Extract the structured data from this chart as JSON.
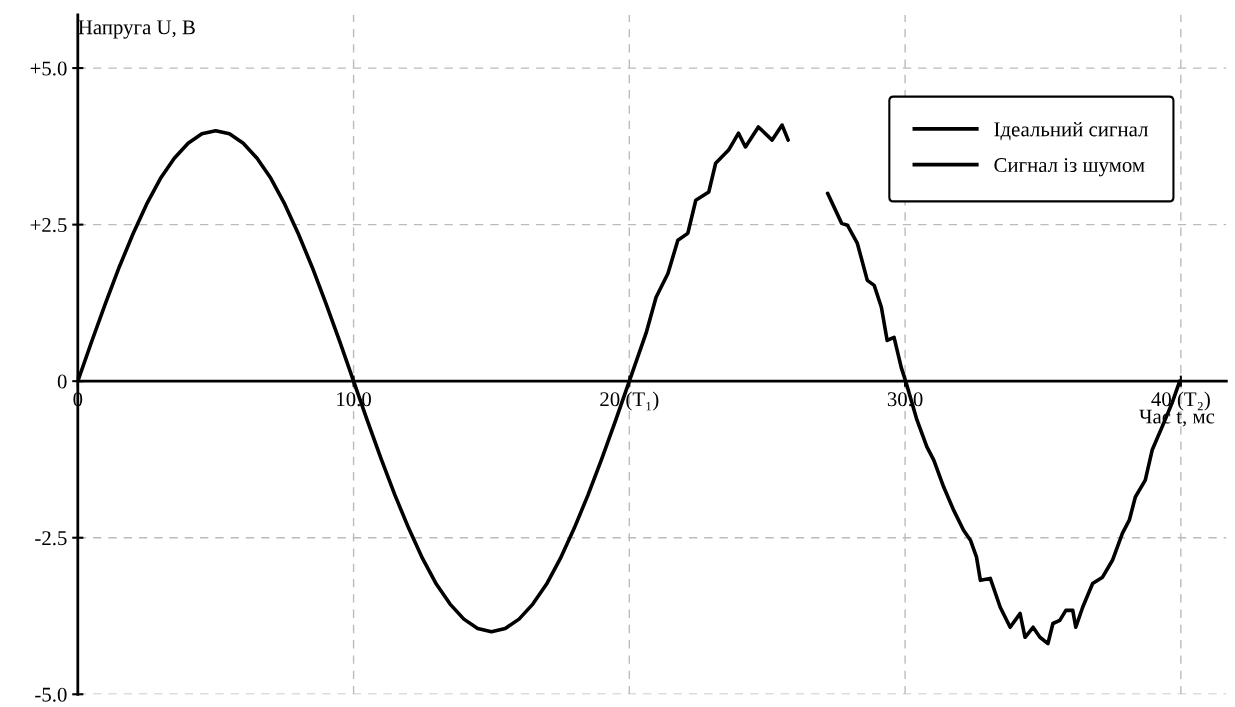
{
  "chart_data": {
    "type": "line",
    "xlabel": "Час t, мс",
    "ylabel": "Напруга U, В",
    "xlim": [
      0,
      41.65
    ],
    "ylim": [
      -5,
      5.85
    ],
    "xticks": [
      0,
      {
        "value": 10,
        "label": "10.0"
      },
      {
        "value": 20,
        "label": "20 (T₁)"
      },
      {
        "value": 30,
        "label": "30.0"
      },
      {
        "value": 40,
        "label": "40 (T₂)"
      }
    ],
    "yticks": [
      {
        "value": -5,
        "label": "-5.0"
      },
      {
        "value": -2.5,
        "label": "-2.5"
      },
      0,
      {
        "value": 2.5,
        "label": "+2.5"
      },
      {
        "value": 5,
        "label": "+5.0"
      }
    ],
    "grid": true,
    "legend": "top right",
    "line_style": "solid",
    "marker": "none",
    "series": [
      {
        "name": "Ідеальний сигнал",
        "color": "#000000",
        "x": [
          0,
          0.5,
          1,
          1.5,
          2,
          2.5,
          3,
          3.5,
          4,
          4.5,
          5,
          5.5,
          6,
          6.5,
          7,
          7.5,
          8,
          8.5,
          9,
          9.5,
          10,
          10.5,
          11,
          11.5,
          12,
          12.5,
          13,
          13.5,
          14,
          14.5,
          15,
          15.5,
          16,
          16.5,
          17,
          17.5,
          18,
          18.5,
          19,
          19.5,
          20
        ],
        "values": [
          0,
          0.63,
          1.24,
          1.82,
          2.35,
          2.83,
          3.24,
          3.56,
          3.8,
          3.95,
          4.0,
          3.95,
          3.8,
          3.56,
          3.24,
          2.83,
          2.35,
          1.82,
          1.24,
          0.63,
          0,
          -0.63,
          -1.24,
          -1.82,
          -2.35,
          -2.83,
          -3.24,
          -3.56,
          -3.8,
          -3.95,
          -4.0,
          -3.95,
          -3.8,
          -3.56,
          -3.24,
          -2.83,
          -2.35,
          -1.82,
          -1.24,
          -0.63,
          0
        ]
      },
      {
        "name": "Сигнал із шумом",
        "color": "#000000",
        "x": [
          20.0,
          20.61,
          20.97,
          21.4,
          21.76,
          22.12,
          22.41,
          22.88,
          23.13,
          23.6,
          23.96,
          24.21,
          24.68,
          25.18,
          25.54,
          25.76,
          26.5,
          27.19,
          27.7,
          27.91,
          28.27,
          28.63,
          28.88,
          29.14,
          29.35,
          29.6,
          29.86,
          30.04,
          30.43,
          30.79,
          31.04,
          31.4,
          31.76,
          32.12,
          32.37,
          32.59,
          32.73,
          33.09,
          33.45,
          33.81,
          34.17,
          34.35,
          34.64,
          34.89,
          35.18,
          35.36,
          35.61,
          35.83,
          36.08,
          36.19,
          36.44,
          36.8,
          37.16,
          37.52,
          37.88,
          38.13,
          38.35,
          38.71,
          38.96,
          39.32,
          39.68,
          39.96
        ],
        "values": [
          0,
          0.77,
          1.34,
          1.72,
          2.25,
          2.36,
          2.89,
          3.02,
          3.48,
          3.69,
          3.96,
          3.74,
          4.06,
          3.85,
          4.09,
          3.85,
          null,
          3.0,
          2.52,
          2.49,
          2.2,
          1.61,
          1.53,
          1.18,
          0.65,
          0.7,
          0.22,
          -0.03,
          -0.62,
          -1.05,
          -1.26,
          -1.69,
          -2.06,
          -2.38,
          -2.54,
          -2.81,
          -3.18,
          -3.15,
          -3.61,
          -3.93,
          -3.71,
          -4.09,
          -3.93,
          -4.09,
          -4.19,
          -3.87,
          -3.82,
          -3.66,
          -3.66,
          -3.93,
          -3.61,
          -3.23,
          -3.13,
          -2.86,
          -2.43,
          -2.22,
          -1.85,
          -1.58,
          -1.1,
          -0.73,
          -0.35,
          0
        ]
      }
    ]
  }
}
